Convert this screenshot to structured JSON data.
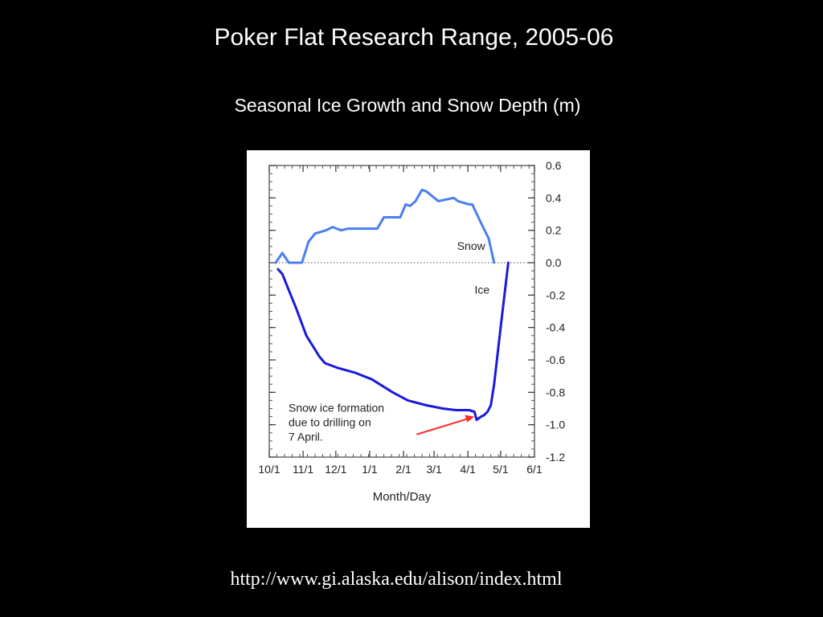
{
  "slide": {
    "title": "Poker Flat Research Range, 2005-06",
    "subtitle": "Seasonal Ice Growth and Snow Depth (m)",
    "source_url": "http://www.gi.alaska.edu/alison/index.html"
  },
  "chart_data": {
    "type": "line",
    "xlabel": "Month/Day",
    "ylabel": "",
    "xlim": [
      "2005-10-01",
      "2006-06-01"
    ],
    "ylim": [
      -1.2,
      0.6
    ],
    "x_ticks": [
      "2005-10-01",
      "2005-11-01",
      "2005-12-01",
      "2006-01-01",
      "2006-02-01",
      "2006-03-01",
      "2006-04-01",
      "2006-05-01",
      "2006-06-01"
    ],
    "x_tick_labels": [
      "10/1",
      "11/1",
      "12/1",
      "1/1",
      "2/1",
      "3/1",
      "4/1",
      "5/1",
      "6/1"
    ],
    "y_ticks": [
      0.6,
      0.4,
      0.2,
      0.0,
      -0.2,
      -0.4,
      -0.6,
      -0.8,
      -1.0,
      -1.2
    ],
    "y_tick_labels": [
      "0.6",
      "0.4",
      "0.2",
      "0.0",
      "-0.2",
      "-0.4",
      "-0.6",
      "-0.8",
      "-1.0",
      "-1.2"
    ],
    "zero_line": true,
    "grid": false,
    "series": [
      {
        "name": "Snow",
        "color": "#4a7ff0",
        "points": [
          [
            "2005-10-07",
            0.0
          ],
          [
            "2005-10-13",
            0.06
          ],
          [
            "2005-10-19",
            0.0
          ],
          [
            "2005-10-31",
            0.0
          ],
          [
            "2005-11-06",
            0.13
          ],
          [
            "2005-11-12",
            0.18
          ],
          [
            "2005-11-22",
            0.2
          ],
          [
            "2005-11-28",
            0.22
          ],
          [
            "2005-12-06",
            0.2
          ],
          [
            "2005-12-12",
            0.21
          ],
          [
            "2006-01-08",
            0.21
          ],
          [
            "2006-01-14",
            0.28
          ],
          [
            "2006-01-29",
            0.28
          ],
          [
            "2006-02-03",
            0.36
          ],
          [
            "2006-02-07",
            0.35
          ],
          [
            "2006-02-12",
            0.38
          ],
          [
            "2006-02-18",
            0.45
          ],
          [
            "2006-02-22",
            0.44
          ],
          [
            "2006-03-05",
            0.38
          ],
          [
            "2006-03-19",
            0.4
          ],
          [
            "2006-03-23",
            0.38
          ],
          [
            "2006-04-02",
            0.36
          ],
          [
            "2006-04-05",
            0.36
          ],
          [
            "2006-04-12",
            0.26
          ],
          [
            "2006-04-20",
            0.15
          ],
          [
            "2006-04-25",
            0.0
          ]
        ]
      },
      {
        "name": "Ice",
        "color": "#1a1adb",
        "points": [
          [
            "2005-10-09",
            -0.04
          ],
          [
            "2005-10-13",
            -0.07
          ],
          [
            "2005-10-19",
            -0.17
          ],
          [
            "2005-10-25",
            -0.27
          ],
          [
            "2005-11-04",
            -0.45
          ],
          [
            "2005-11-16",
            -0.58
          ],
          [
            "2005-11-21",
            -0.62
          ],
          [
            "2005-12-03",
            -0.65
          ],
          [
            "2005-12-19",
            -0.68
          ],
          [
            "2006-01-03",
            -0.72
          ],
          [
            "2006-01-22",
            -0.8
          ],
          [
            "2006-02-05",
            -0.85
          ],
          [
            "2006-02-22",
            -0.88
          ],
          [
            "2006-03-09",
            -0.9
          ],
          [
            "2006-03-21",
            -0.91
          ],
          [
            "2006-04-02",
            -0.91
          ],
          [
            "2006-04-07",
            -0.92
          ],
          [
            "2006-04-09",
            -0.97
          ],
          [
            "2006-04-13",
            -0.95
          ],
          [
            "2006-04-16",
            -0.94
          ],
          [
            "2006-04-19",
            -0.92
          ],
          [
            "2006-04-22",
            -0.88
          ],
          [
            "2006-04-25",
            -0.75
          ],
          [
            "2006-05-01",
            -0.4
          ],
          [
            "2006-05-08",
            0.0
          ]
        ]
      }
    ],
    "annotations": {
      "snow_label": "Snow",
      "ice_label": "Ice",
      "note_lines": [
        "Snow ice formation",
        "due to drilling on",
        "7 April."
      ],
      "arrow_color": "#ff2a2a",
      "arrow_target": [
        "2006-04-07",
        -0.95
      ]
    }
  }
}
